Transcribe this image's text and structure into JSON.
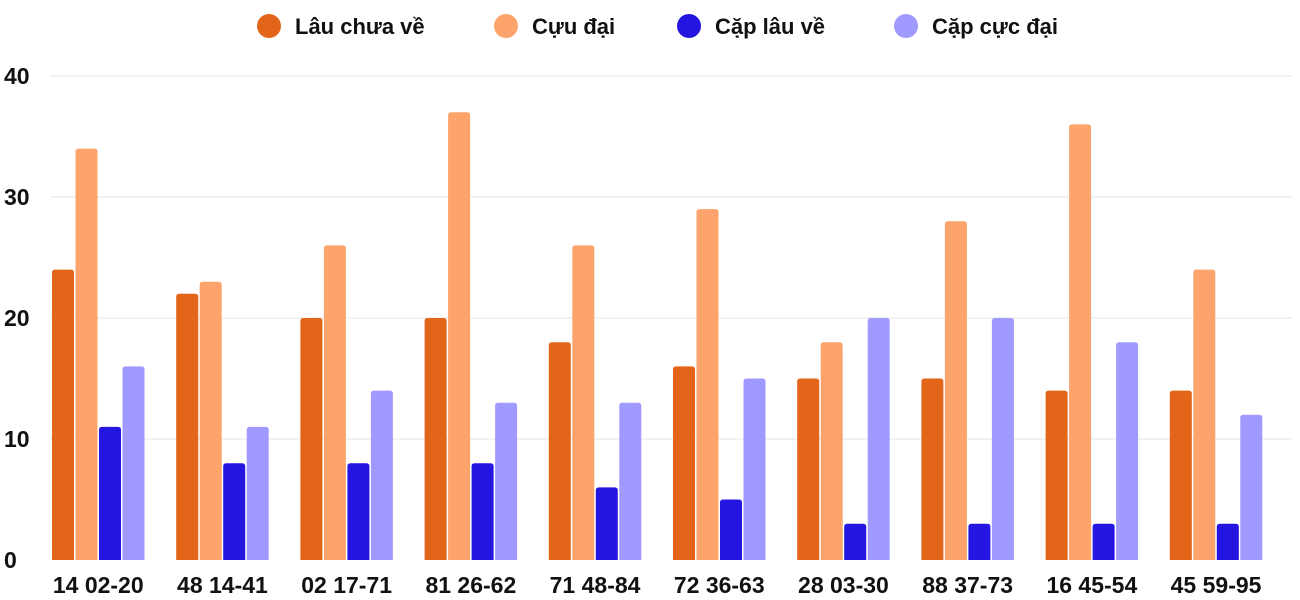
{
  "chart_data": {
    "type": "bar",
    "title": "",
    "xlabel": "",
    "ylabel": "",
    "ylim": [
      0,
      40
    ],
    "y_ticks": [
      "0",
      "10",
      "20",
      "30",
      "40"
    ],
    "grid": true,
    "legend_position": "top-center",
    "categories": [
      "14 02-20",
      "48 14-41",
      "02 17-71",
      "81 26-62",
      "71 48-84",
      "72 36-63",
      "28 03-30",
      "88 37-73",
      "16 45-54",
      "45 59-95"
    ],
    "series": [
      {
        "name": "Lâu chưa về",
        "color": "#e2651a",
        "values": [
          24,
          22,
          20,
          20,
          18,
          16,
          15,
          15,
          14,
          14
        ]
      },
      {
        "name": "Cựu đại",
        "color": "#fca46b",
        "values": [
          34,
          23,
          26,
          37,
          26,
          29,
          18,
          28,
          36,
          24
        ]
      },
      {
        "name": "Cặp lâu về",
        "color": "#2415e0",
        "values": [
          11,
          8,
          8,
          8,
          6,
          5,
          3,
          3,
          3,
          3
        ]
      },
      {
        "name": "Cặp cực đại",
        "color": "#a09aff",
        "values": [
          16,
          11,
          14,
          13,
          13,
          15,
          20,
          20,
          18,
          12
        ]
      }
    ]
  }
}
